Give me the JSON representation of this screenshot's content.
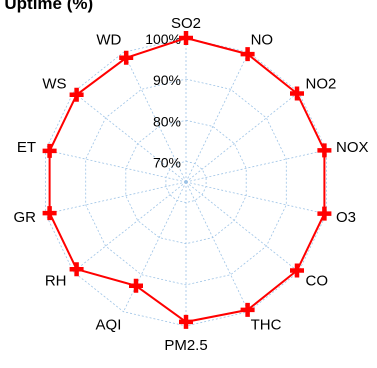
{
  "chart_data": {
    "type": "radar",
    "title": "t Uptime (%)",
    "categories": [
      "SO2",
      "NO",
      "NO2",
      "NOX",
      "O3",
      "CO",
      "THC",
      "PM2.5",
      "AQI",
      "RH",
      "GR",
      "ET",
      "WS",
      "WD"
    ],
    "series": [
      {
        "values": [
          100,
          99.5,
          99.5,
          99.5,
          99.5,
          99.5,
          99.5,
          99,
          93,
          99,
          99,
          99,
          99,
          98.5
        ]
      }
    ],
    "rlim": [
      65,
      100
    ],
    "rticks": [
      70,
      80,
      90,
      100
    ],
    "tick_labels": [
      "70%",
      "80%",
      "90%",
      "100%"
    ],
    "grid": true,
    "colors": {
      "series": "#ff0000",
      "grid": "#9dc3e6",
      "text": "#000000"
    },
    "marker": "plus"
  }
}
